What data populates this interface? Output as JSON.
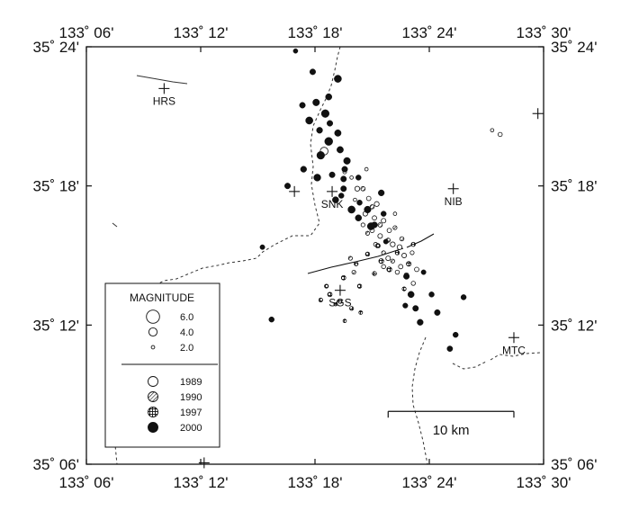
{
  "map": {
    "lon_range": [
      133.1,
      133.5
    ],
    "lat_range": [
      35.1,
      35.4
    ],
    "lon_ticks": [
      {
        "value": 133.1,
        "label": "133˚ 06'"
      },
      {
        "value": 133.2,
        "label": "133˚ 12'"
      },
      {
        "value": 133.3,
        "label": "133˚ 18'"
      },
      {
        "value": 133.4,
        "label": "133˚ 24'"
      },
      {
        "value": 133.5,
        "label": "133˚ 30'"
      }
    ],
    "lat_ticks": [
      {
        "value": 35.1,
        "label": "35˚ 06'"
      },
      {
        "value": 35.2,
        "label": "35˚ 12'"
      },
      {
        "value": 35.3,
        "label": "35˚ 18'"
      },
      {
        "value": 35.4,
        "label": "35˚ 24'"
      }
    ]
  },
  "stations": [
    {
      "name": "HRS",
      "lon": 133.168,
      "lat": 35.37
    },
    {
      "name": "SNK",
      "lon": 133.315,
      "lat": 35.296
    },
    {
      "name": "NIB",
      "lon": 133.421,
      "lat": 35.298
    },
    {
      "name": "SGS",
      "lon": 133.322,
      "lat": 35.225
    },
    {
      "name": "MTC",
      "lon": 133.474,
      "lat": 35.191
    }
  ],
  "unlabeled_stations": [
    {
      "lon": 133.282,
      "lat": 35.296
    },
    {
      "lon": 133.495,
      "lat": 35.352
    },
    {
      "lon": 133.203,
      "lat": 35.101
    }
  ],
  "legend": {
    "title": "MAGNITUDE",
    "magnitudes": [
      {
        "label": "6.0",
        "mag": 6.0
      },
      {
        "label": "4.0",
        "mag": 4.0
      },
      {
        "label": "2.0",
        "mag": 2.0
      }
    ],
    "years": [
      {
        "label": "1989",
        "style": "open"
      },
      {
        "label": "1990",
        "style": "hatch"
      },
      {
        "label": "1997",
        "style": "cross"
      },
      {
        "label": "2000",
        "style": "solid"
      }
    ]
  },
  "scale_bar": {
    "label": "10 km",
    "lon_start": 133.364,
    "lon_end": 133.474,
    "lat": 35.138
  },
  "events_2000": [
    [
      133.283,
      35.397,
      2.5
    ],
    [
      133.298,
      35.382,
      3.0
    ],
    [
      133.32,
      35.377,
      3.6
    ],
    [
      133.312,
      35.364,
      3.2
    ],
    [
      133.301,
      35.36,
      3.4
    ],
    [
      133.289,
      35.358,
      3.0
    ],
    [
      133.309,
      35.352,
      3.8
    ],
    [
      133.295,
      35.347,
      3.6
    ],
    [
      133.304,
      35.34,
      3.1
    ],
    [
      133.312,
      35.332,
      3.9
    ],
    [
      133.322,
      35.326,
      3.3
    ],
    [
      133.305,
      35.322,
      3.8
    ],
    [
      133.29,
      35.312,
      3.1
    ],
    [
      133.276,
      35.3,
      3.0
    ],
    [
      133.302,
      35.306,
      3.5
    ],
    [
      133.315,
      35.308,
      3.0
    ],
    [
      133.328,
      35.318,
      3.4
    ],
    [
      133.338,
      35.306,
      2.8
    ],
    [
      133.325,
      35.298,
      3.0
    ],
    [
      133.318,
      35.29,
      3.2
    ],
    [
      133.332,
      35.283,
      3.6
    ],
    [
      133.338,
      35.277,
      3.2
    ],
    [
      133.325,
      35.305,
      3.0
    ],
    [
      133.339,
      35.288,
      2.8
    ],
    [
      133.349,
      35.271,
      3.6
    ],
    [
      133.346,
      35.283,
      3.4
    ],
    [
      133.358,
      35.295,
      3.1
    ],
    [
      133.36,
      35.28,
      2.8
    ],
    [
      133.352,
      35.272,
      3.1
    ],
    [
      133.362,
      35.26,
      2.6
    ],
    [
      133.38,
      35.235,
      3.0
    ],
    [
      133.384,
      35.222,
      3.2
    ],
    [
      133.388,
      35.212,
      3.0
    ],
    [
      133.392,
      35.202,
      3.1
    ],
    [
      133.402,
      35.222,
      2.8
    ],
    [
      133.407,
      35.209,
      3.0
    ],
    [
      133.423,
      35.193,
      2.8
    ],
    [
      133.418,
      35.183,
      2.9
    ],
    [
      133.379,
      35.214,
      2.7
    ],
    [
      133.395,
      35.238,
      2.6
    ],
    [
      133.32,
      35.338,
      3.3
    ],
    [
      133.313,
      35.345,
      3.0
    ],
    [
      133.326,
      35.312,
      3.0
    ],
    [
      133.323,
      35.293,
      2.8
    ],
    [
      133.254,
      35.256,
      2.6
    ],
    [
      133.262,
      35.204,
      2.8
    ],
    [
      133.43,
      35.22,
      2.8
    ]
  ],
  "events_1997": [
    [
      133.355,
      35.257,
      2.5
    ],
    [
      133.358,
      35.246,
      2.6
    ],
    [
      133.365,
      35.24,
      2.6
    ],
    [
      133.346,
      35.251,
      2.3
    ],
    [
      133.372,
      35.252,
      2.3
    ],
    [
      133.382,
      35.244,
      2.4
    ],
    [
      133.352,
      35.237,
      2.3
    ],
    [
      133.339,
      35.228,
      2.3
    ],
    [
      133.313,
      35.222,
      2.4
    ],
    [
      133.305,
      35.218,
      2.2
    ],
    [
      133.322,
      35.217,
      2.2
    ],
    [
      133.332,
      35.212,
      2.2
    ],
    [
      133.34,
      35.209,
      2.1
    ],
    [
      133.31,
      35.228,
      2.2
    ],
    [
      133.325,
      35.234,
      2.4
    ],
    [
      133.336,
      35.244,
      2.2
    ],
    [
      133.386,
      35.258,
      2.3
    ],
    [
      133.318,
      35.215,
      2.0
    ],
    [
      133.326,
      35.203,
      2.0
    ],
    [
      133.378,
      35.226,
      2.2
    ]
  ],
  "events_1990": [
    [
      133.342,
      35.298,
      2.4
    ],
    [
      133.35,
      35.285,
      2.3
    ],
    [
      133.357,
      35.272,
      2.4
    ],
    [
      133.364,
      35.261,
      2.3
    ],
    [
      133.37,
      35.27,
      2.2
    ],
    [
      133.376,
      35.262,
      2.3
    ],
    [
      133.346,
      35.266,
      2.2
    ],
    [
      133.331,
      35.248,
      2.2
    ],
    [
      133.334,
      35.238,
      2.2
    ],
    [
      133.36,
      35.252,
      2.2
    ],
    [
      133.368,
      35.246,
      2.2
    ]
  ],
  "events_1989": [
    [
      133.308,
      35.325,
      3.8
    ],
    [
      133.337,
      35.298,
      2.6
    ],
    [
      133.347,
      35.291,
      2.4
    ],
    [
      133.354,
      35.287,
      2.6
    ],
    [
      133.344,
      35.28,
      2.5
    ],
    [
      133.352,
      35.277,
      2.4
    ],
    [
      133.36,
      35.275,
      2.5
    ],
    [
      133.35,
      35.268,
      2.4
    ],
    [
      133.357,
      35.264,
      2.5
    ],
    [
      133.365,
      35.268,
      2.4
    ],
    [
      133.368,
      35.258,
      2.6
    ],
    [
      133.374,
      35.256,
      2.6
    ],
    [
      133.378,
      35.25,
      2.5
    ],
    [
      133.382,
      35.244,
      2.5
    ],
    [
      133.375,
      35.242,
      2.4
    ],
    [
      133.385,
      35.252,
      2.2
    ],
    [
      133.364,
      35.248,
      2.5
    ],
    [
      133.372,
      35.238,
      2.3
    ],
    [
      133.38,
      35.236,
      2.4
    ],
    [
      133.386,
      35.23,
      2.3
    ],
    [
      133.389,
      35.24,
      2.4
    ],
    [
      133.36,
      35.242,
      2.3
    ],
    [
      133.353,
      35.258,
      2.2
    ],
    [
      133.342,
      35.272,
      2.2
    ],
    [
      133.335,
      35.29,
      2.0
    ],
    [
      133.332,
      35.306,
      2.0
    ],
    [
      133.326,
      35.31,
      2.1
    ],
    [
      133.345,
      35.312,
      2.0
    ],
    [
      133.37,
      35.28,
      2.0
    ],
    [
      133.455,
      35.34,
      2.0
    ],
    [
      133.462,
      35.337,
      2.3
    ]
  ]
}
